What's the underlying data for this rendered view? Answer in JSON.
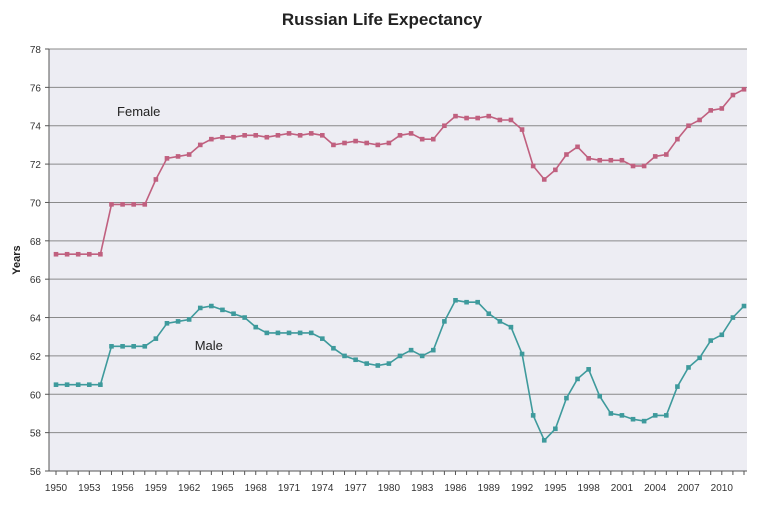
{
  "chart_data": {
    "type": "line",
    "title": "Russian Life Expectancy",
    "xlabel": "",
    "ylabel": "Years",
    "ylim": [
      56,
      78
    ],
    "yticks": [
      56,
      58,
      60,
      62,
      64,
      66,
      68,
      70,
      72,
      74,
      76,
      78
    ],
    "xlim": [
      1950,
      2012
    ],
    "xticks": [
      1950,
      1953,
      1956,
      1959,
      1962,
      1965,
      1968,
      1971,
      1974,
      1977,
      1980,
      1983,
      1986,
      1989,
      1992,
      1995,
      1998,
      2001,
      2004,
      2007,
      2010
    ],
    "grid": "horizontal",
    "background": "#ededf3",
    "x": [
      1950,
      1951,
      1952,
      1953,
      1954,
      1955,
      1956,
      1957,
      1958,
      1959,
      1960,
      1961,
      1962,
      1963,
      1964,
      1965,
      1966,
      1967,
      1968,
      1969,
      1970,
      1971,
      1972,
      1973,
      1974,
      1975,
      1976,
      1977,
      1978,
      1979,
      1980,
      1981,
      1982,
      1983,
      1984,
      1985,
      1986,
      1987,
      1988,
      1989,
      1990,
      1991,
      1992,
      1993,
      1994,
      1995,
      1996,
      1997,
      1998,
      1999,
      2000,
      2001,
      2002,
      2003,
      2004,
      2005,
      2006,
      2007,
      2008,
      2009,
      2010,
      2011,
      2012
    ],
    "series": [
      {
        "name": "Female",
        "color": "#c0607f",
        "values": [
          67.3,
          67.3,
          67.3,
          67.3,
          67.3,
          69.9,
          69.9,
          69.9,
          69.9,
          71.2,
          72.3,
          72.4,
          72.5,
          73.0,
          73.3,
          73.4,
          73.4,
          73.5,
          73.5,
          73.4,
          73.5,
          73.6,
          73.5,
          73.6,
          73.5,
          73.0,
          73.1,
          73.2,
          73.1,
          73.0,
          73.1,
          73.5,
          73.6,
          73.3,
          73.3,
          74.0,
          74.5,
          74.4,
          74.4,
          74.5,
          74.3,
          74.3,
          73.8,
          71.9,
          71.2,
          71.7,
          72.5,
          72.9,
          72.3,
          72.2,
          72.2,
          72.2,
          71.9,
          71.9,
          72.4,
          72.5,
          73.3,
          74.0,
          74.3,
          74.8,
          74.9,
          75.6,
          75.9
        ]
      },
      {
        "name": "Male",
        "color": "#3e9a9c",
        "values": [
          60.5,
          60.5,
          60.5,
          60.5,
          60.5,
          62.5,
          62.5,
          62.5,
          62.5,
          62.9,
          63.7,
          63.8,
          63.9,
          64.5,
          64.6,
          64.4,
          64.2,
          64.0,
          63.5,
          63.2,
          63.2,
          63.2,
          63.2,
          63.2,
          62.9,
          62.4,
          62.0,
          61.8,
          61.6,
          61.5,
          61.6,
          62.0,
          62.3,
          62.0,
          62.3,
          63.8,
          64.9,
          64.8,
          64.8,
          64.2,
          63.8,
          63.5,
          62.1,
          58.9,
          57.6,
          58.2,
          59.8,
          60.8,
          61.3,
          59.9,
          59.0,
          58.9,
          58.7,
          58.6,
          58.9,
          58.9,
          60.4,
          61.4,
          61.9,
          62.8,
          63.1,
          64.0,
          64.6
        ]
      }
    ]
  }
}
